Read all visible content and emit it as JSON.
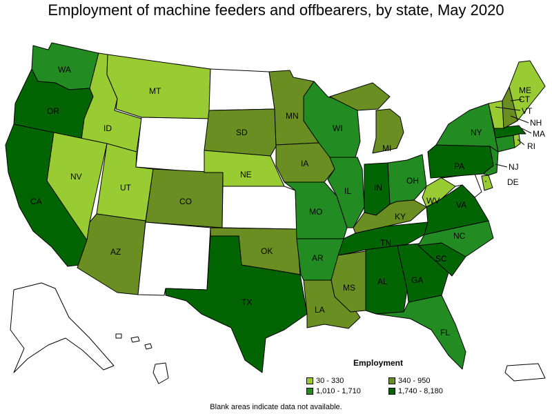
{
  "title": "Employment of machine feeders and offbearers, by state, May 2020",
  "legend": {
    "title": "Employment",
    "items": [
      {
        "label": "30 - 330",
        "color": "#99cc33"
      },
      {
        "label": "340 - 950",
        "color": "#6b8e23"
      },
      {
        "label": "1,010 - 1,710",
        "color": "#228b22"
      },
      {
        "label": "1,740 - 8,180",
        "color": "#006400"
      }
    ]
  },
  "footnote": "Blank areas indicate data not available.",
  "no_data_color": "#ffffff",
  "states": {
    "WA": {
      "label": "WA",
      "tier": 2
    },
    "OR": {
      "label": "OR",
      "tier": 3
    },
    "CA": {
      "label": "CA",
      "tier": 3
    },
    "ID": {
      "label": "ID",
      "tier": 0
    },
    "NV": {
      "label": "NV",
      "tier": 0
    },
    "MT": {
      "label": "MT",
      "tier": 0
    },
    "UT": {
      "label": "UT",
      "tier": 0
    },
    "AZ": {
      "label": "AZ",
      "tier": 1
    },
    "WY": {
      "label": "",
      "tier": null
    },
    "CO": {
      "label": "CO",
      "tier": 1
    },
    "NM": {
      "label": "",
      "tier": null
    },
    "ND": {
      "label": "",
      "tier": null
    },
    "SD": {
      "label": "SD",
      "tier": 1
    },
    "NE": {
      "label": "NE",
      "tier": 0
    },
    "KS": {
      "label": "",
      "tier": null
    },
    "OK": {
      "label": "OK",
      "tier": 1
    },
    "TX": {
      "label": "TX",
      "tier": 3
    },
    "MN": {
      "label": "MN",
      "tier": 1
    },
    "IA": {
      "label": "IA",
      "tier": 1
    },
    "MO": {
      "label": "MO",
      "tier": 2
    },
    "AR": {
      "label": "AR",
      "tier": 2
    },
    "LA": {
      "label": "LA",
      "tier": 1
    },
    "WI": {
      "label": "WI",
      "tier": 2
    },
    "IL": {
      "label": "IL",
      "tier": 2
    },
    "MI": {
      "label": "MI",
      "tier": 1
    },
    "IN": {
      "label": "IN",
      "tier": 3
    },
    "OH": {
      "label": "OH",
      "tier": 2
    },
    "KY": {
      "label": "KY",
      "tier": 1
    },
    "TN": {
      "label": "TN",
      "tier": 3
    },
    "MS": {
      "label": "MS",
      "tier": 1
    },
    "AL": {
      "label": "AL",
      "tier": 3
    },
    "GA": {
      "label": "GA",
      "tier": 3
    },
    "FL": {
      "label": "FL",
      "tier": 2
    },
    "SC": {
      "label": "SC",
      "tier": 3
    },
    "NC": {
      "label": "NC",
      "tier": 2
    },
    "VA": {
      "label": "VA",
      "tier": 3
    },
    "WV": {
      "label": "WV",
      "tier": 0
    },
    "PA": {
      "label": "PA",
      "tier": 3
    },
    "NY": {
      "label": "NY",
      "tier": 2
    },
    "VT": {
      "label": "VT",
      "tier": 0
    },
    "NH": {
      "label": "NH",
      "tier": 1
    },
    "ME": {
      "label": "ME",
      "tier": 0
    },
    "MA": {
      "label": "MA",
      "tier": 3
    },
    "RI": {
      "label": "RI",
      "tier": 0
    },
    "CT": {
      "label": "CT",
      "tier": 2
    },
    "NJ": {
      "label": "NJ",
      "tier": 2
    },
    "DE": {
      "label": "DE",
      "tier": 0
    },
    "MD": {
      "label": "",
      "tier": null
    },
    "AK": {
      "label": "",
      "tier": null
    },
    "HI": {
      "label": "",
      "tier": null
    },
    "PR": {
      "label": "",
      "tier": null
    }
  }
}
